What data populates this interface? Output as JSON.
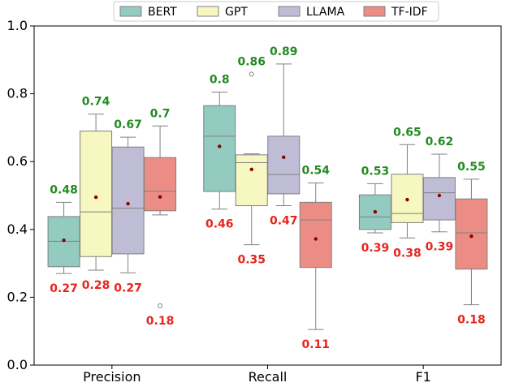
{
  "chart_data": {
    "type": "box",
    "categories": [
      "Precision",
      "Recall",
      "F1"
    ],
    "ylim": [
      0.0,
      1.0
    ],
    "yticks": [
      "0.0",
      "0.2",
      "0.4",
      "0.6",
      "0.8",
      "1.0"
    ],
    "legend_position": "top-center",
    "grid": false,
    "series": [
      {
        "name": "BERT",
        "color": "#93cbc0",
        "boxes": [
          {
            "whislo": 0.27,
            "q1": 0.29,
            "med": 0.365,
            "q3": 0.438,
            "whishi": 0.48,
            "mean": 0.368,
            "fliers": [],
            "min_label": "0.27",
            "max_label": "0.48"
          },
          {
            "whislo": 0.46,
            "q1": 0.512,
            "med": 0.675,
            "q3": 0.765,
            "whishi": 0.805,
            "mean": 0.645,
            "fliers": [],
            "min_label": "0.46",
            "max_label": "0.8"
          },
          {
            "whislo": 0.39,
            "q1": 0.4,
            "med": 0.437,
            "q3": 0.502,
            "whishi": 0.535,
            "mean": 0.452,
            "fliers": [],
            "min_label": "0.39",
            "max_label": "0.53"
          }
        ]
      },
      {
        "name": "GPT",
        "color": "#f7f7c2",
        "boxes": [
          {
            "whislo": 0.28,
            "q1": 0.32,
            "med": 0.452,
            "q3": 0.69,
            "whishi": 0.74,
            "mean": 0.495,
            "fliers": [],
            "min_label": "0.28",
            "max_label": "0.74"
          },
          {
            "whislo": 0.355,
            "q1": 0.47,
            "med": 0.597,
            "q3": 0.62,
            "whishi": 0.623,
            "mean": 0.577,
            "fliers": [
              0.858
            ],
            "min_label": "0.35",
            "max_label": "0.86"
          },
          {
            "whislo": 0.375,
            "q1": 0.42,
            "med": 0.447,
            "q3": 0.563,
            "whishi": 0.65,
            "mean": 0.488,
            "fliers": [],
            "min_label": "0.38",
            "max_label": "0.65"
          }
        ]
      },
      {
        "name": "LLAMA",
        "color": "#bfbcd6",
        "boxes": [
          {
            "whislo": 0.272,
            "q1": 0.328,
            "med": 0.463,
            "q3": 0.643,
            "whishi": 0.672,
            "mean": 0.476,
            "fliers": [],
            "min_label": "0.27",
            "max_label": "0.67"
          },
          {
            "whislo": 0.47,
            "q1": 0.505,
            "med": 0.562,
            "q3": 0.675,
            "whishi": 0.888,
            "mean": 0.613,
            "fliers": [],
            "min_label": "0.47",
            "max_label": "0.89"
          },
          {
            "whislo": 0.393,
            "q1": 0.428,
            "med": 0.508,
            "q3": 0.553,
            "whishi": 0.622,
            "mean": 0.5,
            "fliers": [],
            "min_label": "0.39",
            "max_label": "0.62"
          }
        ]
      },
      {
        "name": "TF-IDF",
        "color": "#ec8d85",
        "boxes": [
          {
            "whislo": 0.443,
            "q1": 0.455,
            "med": 0.513,
            "q3": 0.612,
            "whishi": 0.705,
            "mean": 0.496,
            "fliers": [
              0.175
            ],
            "min_label": "0.18",
            "max_label": "0.7"
          },
          {
            "whislo": 0.105,
            "q1": 0.288,
            "med": 0.428,
            "q3": 0.48,
            "whishi": 0.537,
            "mean": 0.372,
            "fliers": [],
            "min_label": "0.11",
            "max_label": "0.54"
          },
          {
            "whislo": 0.178,
            "q1": 0.283,
            "med": 0.39,
            "q3": 0.49,
            "whishi": 0.548,
            "mean": 0.38,
            "fliers": [],
            "min_label": "0.18",
            "max_label": "0.55"
          }
        ]
      }
    ]
  }
}
